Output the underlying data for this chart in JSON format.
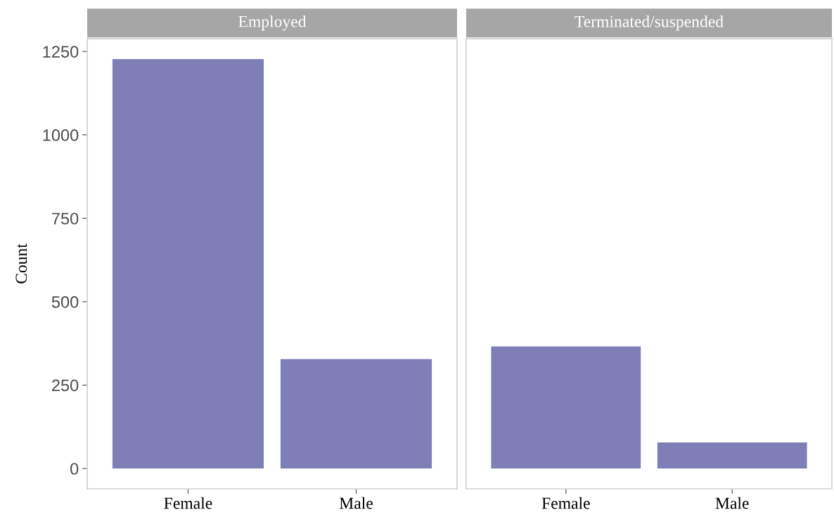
{
  "chart_data": [
    {
      "type": "bar",
      "title": "Employed",
      "ylabel": "Count",
      "categories": [
        "Female",
        "Male"
      ],
      "values": [
        1227,
        328
      ],
      "color": "#7f7fb8",
      "ylim": [
        -61,
        1288
      ],
      "yticks": [
        0,
        250,
        500,
        750,
        1000,
        1250
      ],
      "grid": false,
      "legend": false
    },
    {
      "type": "bar",
      "title": "Terminated/suspended",
      "categories": [
        "Female",
        "Male"
      ],
      "values": [
        366,
        78
      ],
      "color": "#7f7fb8",
      "ylim": [
        -61,
        1288
      ],
      "yticks": [
        0,
        250,
        500,
        750,
        1000,
        1250
      ],
      "grid": false,
      "legend": false,
      "tick_labels": "x"
    }
  ]
}
